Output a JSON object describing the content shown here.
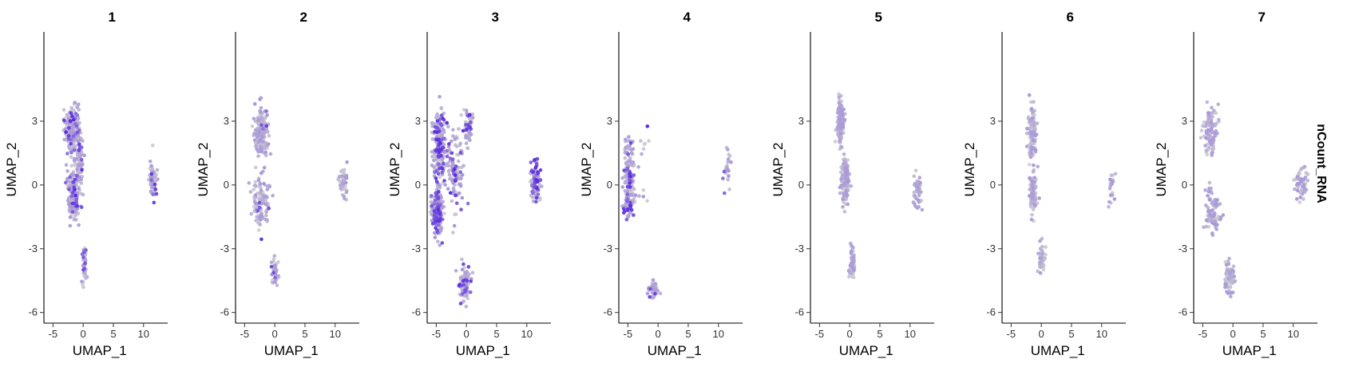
{
  "figure": {
    "side_label": "nCount_RNA"
  },
  "chart_data": {
    "type": "scatter",
    "facet_titles": [
      "1",
      "2",
      "3",
      "4",
      "5",
      "6",
      "7"
    ],
    "xlabel": "UMAP_1",
    "ylabel": "UMAP_2",
    "xlim": [
      -6.5,
      14
    ],
    "ylim": [
      -6.5,
      7.2
    ],
    "x_ticks": [
      -5,
      0,
      5,
      10
    ],
    "x_tick_labels": [
      "-5",
      "0",
      "5",
      "10"
    ],
    "y_ticks": [
      3,
      0,
      -3,
      -6
    ],
    "y_tick_labels": [
      "3",
      "0",
      "-3",
      "-6"
    ],
    "color_low": "#d3d3d3",
    "color_high": "#5a2be0",
    "panels": [
      {
        "name": "1",
        "seed": 11,
        "count": 520,
        "clusters": [
          {
            "cx": -1.8,
            "cy": 2.6,
            "sx": 1.0,
            "sy": 1.0,
            "w": 0.33
          },
          {
            "cx": -1.6,
            "cy": -0.4,
            "sx": 0.9,
            "sy": 1.0,
            "w": 0.33
          },
          {
            "cx": 0.2,
            "cy": -3.8,
            "sx": 0.35,
            "sy": 0.7,
            "w": 0.12
          },
          {
            "cx": 11.5,
            "cy": 0.2,
            "sx": 0.5,
            "sy": 0.6,
            "w": 0.12
          },
          {
            "cx": -0.6,
            "cy": 1.0,
            "sx": 0.5,
            "sy": 1.0,
            "w": 0.1
          }
        ],
        "bright_frac": 0.12
      },
      {
        "name": "2",
        "seed": 22,
        "count": 330,
        "clusters": [
          {
            "cx": -2.2,
            "cy": 2.5,
            "sx": 1.0,
            "sy": 1.0,
            "w": 0.35
          },
          {
            "cx": -2.3,
            "cy": -0.8,
            "sx": 1.2,
            "sy": 1.0,
            "w": 0.33
          },
          {
            "cx": 0.0,
            "cy": -4.2,
            "sx": 0.45,
            "sy": 0.6,
            "w": 0.14
          },
          {
            "cx": 11.3,
            "cy": 0.0,
            "sx": 0.6,
            "sy": 0.7,
            "w": 0.14
          }
        ],
        "bright_frac": 0.02
      },
      {
        "name": "3",
        "seed": 33,
        "count": 760,
        "clusters": [
          {
            "cx": -4.5,
            "cy": 1.8,
            "sx": 0.9,
            "sy": 1.3,
            "w": 0.28
          },
          {
            "cx": -4.8,
            "cy": -1.3,
            "sx": 0.8,
            "sy": 0.9,
            "w": 0.26
          },
          {
            "cx": -1.8,
            "cy": 0.5,
            "sx": 1.3,
            "sy": 1.7,
            "w": 0.14
          },
          {
            "cx": -0.3,
            "cy": -4.6,
            "sx": 0.9,
            "sy": 0.6,
            "w": 0.12
          },
          {
            "cx": 11.5,
            "cy": 0.2,
            "sx": 0.7,
            "sy": 0.9,
            "w": 0.12
          },
          {
            "cx": 0.3,
            "cy": 2.7,
            "sx": 0.6,
            "sy": 0.8,
            "w": 0.08
          }
        ],
        "bright_frac": 0.25
      },
      {
        "name": "4",
        "seed": 44,
        "count": 260,
        "clusters": [
          {
            "cx": -4.8,
            "cy": 0.5,
            "sx": 0.7,
            "sy": 1.5,
            "w": 0.5
          },
          {
            "cx": -4.8,
            "cy": -1.0,
            "sx": 0.8,
            "sy": 0.6,
            "w": 0.2
          },
          {
            "cx": -0.8,
            "cy": -4.9,
            "sx": 0.7,
            "sy": 0.35,
            "w": 0.14
          },
          {
            "cx": 11.5,
            "cy": 0.8,
            "sx": 0.6,
            "sy": 0.8,
            "w": 0.1
          },
          {
            "cx": -3.0,
            "cy": 1.0,
            "sx": 1.2,
            "sy": 1.5,
            "w": 0.06
          }
        ],
        "bright_frac": 0.18
      },
      {
        "name": "5",
        "seed": 55,
        "count": 380,
        "clusters": [
          {
            "cx": -1.5,
            "cy": 3.0,
            "sx": 0.5,
            "sy": 0.8,
            "w": 0.4
          },
          {
            "cx": -0.8,
            "cy": 0.3,
            "sx": 0.6,
            "sy": 1.0,
            "w": 0.36
          },
          {
            "cx": 0.4,
            "cy": -3.8,
            "sx": 0.4,
            "sy": 0.7,
            "w": 0.12
          },
          {
            "cx": 11.3,
            "cy": -0.3,
            "sx": 0.6,
            "sy": 0.7,
            "w": 0.12
          }
        ],
        "bright_frac": 0.0
      },
      {
        "name": "6",
        "seed": 66,
        "count": 240,
        "clusters": [
          {
            "cx": -1.5,
            "cy": 2.5,
            "sx": 0.6,
            "sy": 1.0,
            "w": 0.38
          },
          {
            "cx": -1.3,
            "cy": -0.3,
            "sx": 0.6,
            "sy": 1.0,
            "w": 0.36
          },
          {
            "cx": 0.0,
            "cy": -3.5,
            "sx": 0.5,
            "sy": 0.6,
            "w": 0.16
          },
          {
            "cx": 11.5,
            "cy": -0.2,
            "sx": 0.5,
            "sy": 0.7,
            "w": 0.1
          }
        ],
        "bright_frac": 0.0
      },
      {
        "name": "7",
        "seed": 77,
        "count": 300,
        "clusters": [
          {
            "cx": -3.8,
            "cy": 2.5,
            "sx": 1.0,
            "sy": 1.0,
            "w": 0.32
          },
          {
            "cx": -3.5,
            "cy": -1.2,
            "sx": 1.1,
            "sy": 0.9,
            "w": 0.32
          },
          {
            "cx": -0.6,
            "cy": -4.4,
            "sx": 0.6,
            "sy": 0.6,
            "w": 0.2
          },
          {
            "cx": 11.3,
            "cy": 0.0,
            "sx": 0.8,
            "sy": 0.8,
            "w": 0.16
          }
        ],
        "bright_frac": 0.0
      }
    ]
  }
}
